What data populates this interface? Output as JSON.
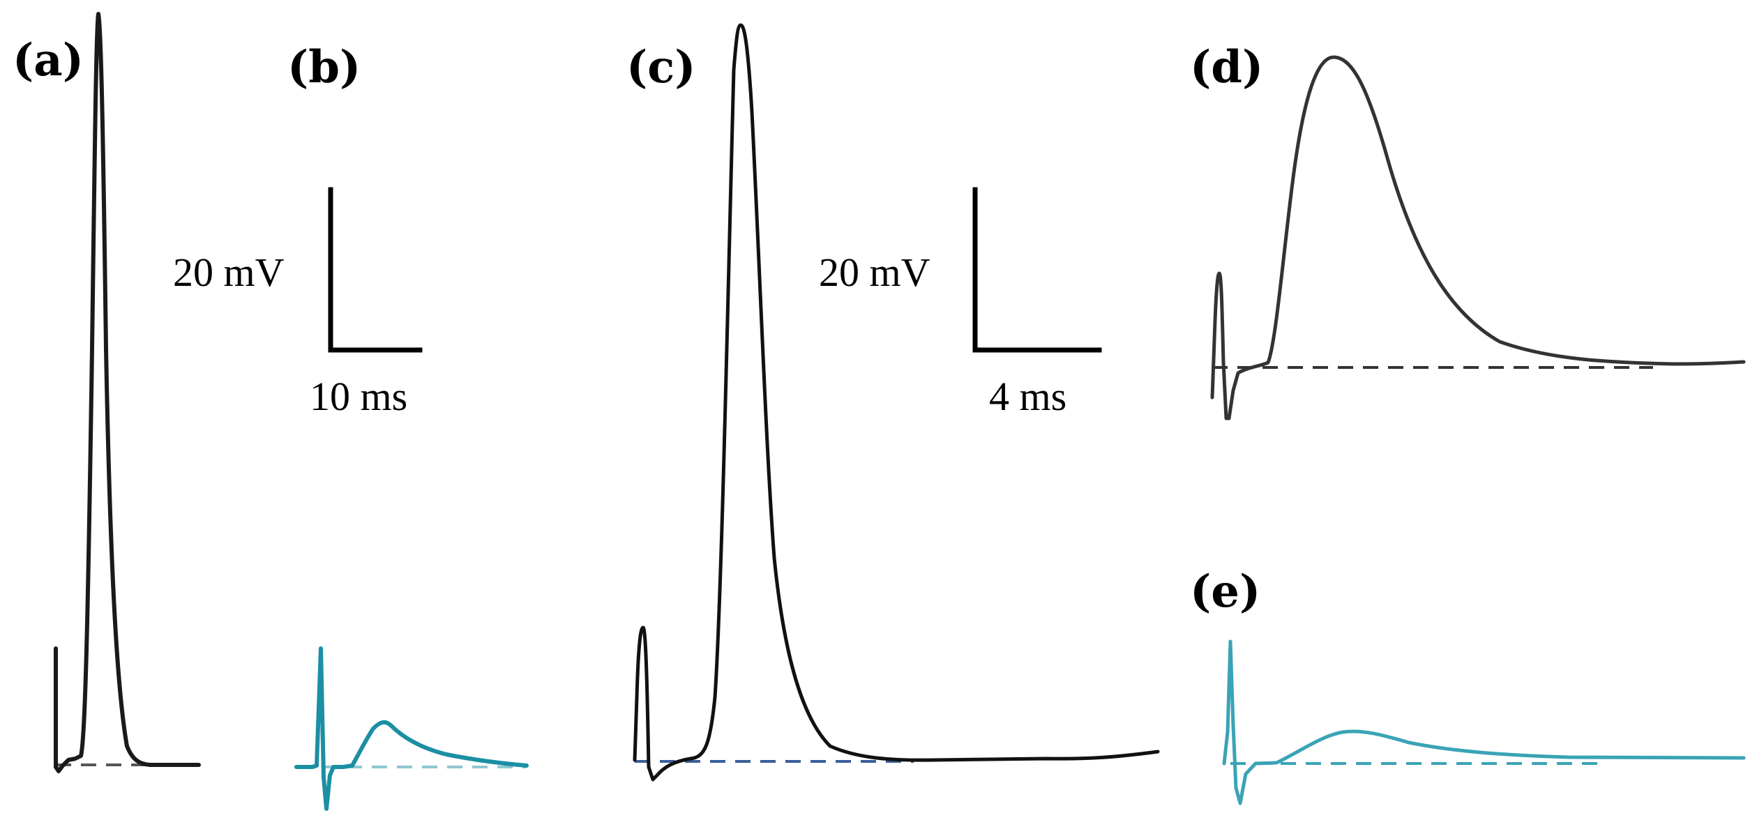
{
  "figure": {
    "panels": [
      {
        "id": "a",
        "label": "(a)",
        "trace_color": "#1a1a1a",
        "baseline_color": "#555555"
      },
      {
        "id": "b",
        "label": "(b)",
        "trace_color": "#1b8fa3",
        "baseline_color": "#8fc7d1"
      },
      {
        "id": "c",
        "label": "(c)",
        "trace_color": "#111111",
        "baseline_color": "#3b5f9a"
      },
      {
        "id": "d",
        "label": "(d)",
        "trace_color": "#333333",
        "baseline_color": "#333333"
      },
      {
        "id": "e",
        "label": "(e)",
        "trace_color": "#3aa3b6",
        "baseline_color": "#3aa3b6"
      }
    ],
    "scale_bars": [
      {
        "id": "left",
        "voltage_label": "20 mV",
        "time_label": "10 ms"
      },
      {
        "id": "right",
        "voltage_label": "20 mV",
        "time_label": "4 ms"
      }
    ]
  }
}
